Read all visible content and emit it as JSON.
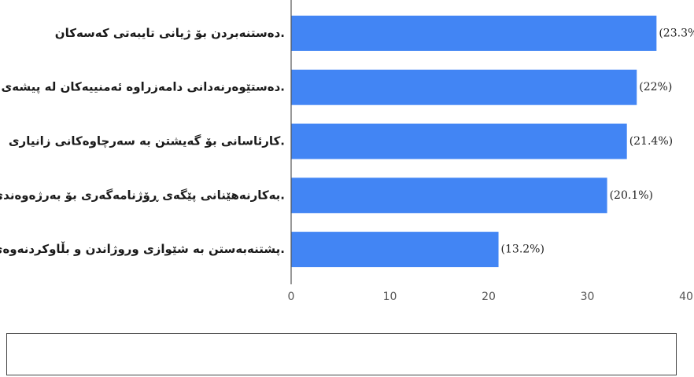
{
  "chart_data": {
    "type": "bar",
    "orientation": "horizontal",
    "categories": [
      "دەستنەبردن بۆ ژیانی تایبەتی کەسەکان.",
      "دەستێوەرنەدانی دامەزراوە ئەمنییەکان لە پیشەی ڕۆژنامەگەری.",
      "کارئاسانی بۆ گەیشتن بە سەرچاوەکانی زانیاری.",
      "بەکارنەهێنانی پێگەی ڕۆژنامەگەری بۆ بەرژەوەندی کەسی.",
      "پشتنەبەستن بە شێوازی وروژاندن و بڵاوکردنەوەی توندوتیژی."
    ],
    "values": [
      37,
      35,
      34,
      32,
      21
    ],
    "data_labels": [
      "(23.3%)",
      "(22%)",
      "(21.4%)",
      "(20.1%)",
      "(13.2%)"
    ],
    "xlim": [
      0,
      40
    ],
    "xticks": [
      "0",
      "10",
      "20",
      "30",
      "40"
    ],
    "grid": false,
    "bar_color": "#4285f4",
    "axis_color": "#555555"
  }
}
